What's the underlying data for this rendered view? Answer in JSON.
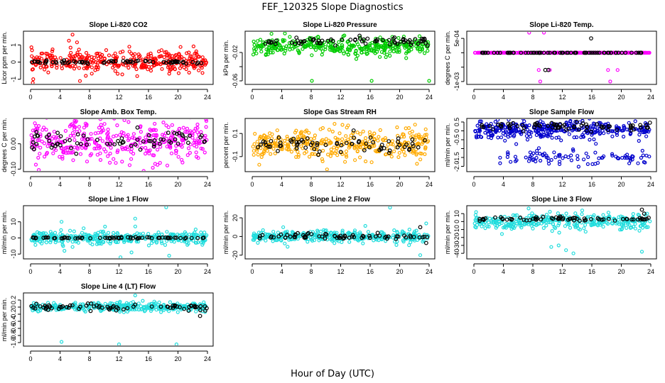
{
  "figure": {
    "title": "FEF_120325  Slope Diagnostics",
    "xlabel": "Hour of Day (UTC)"
  },
  "chart_data": [
    {
      "type": "scatter",
      "title": "Slope Li-820 CO2",
      "ylabel": "Licor ppm per min.",
      "xlim": [
        0,
        24
      ],
      "ylim": [
        -1.3,
        1.8
      ],
      "xticks": [
        "0",
        "4",
        "8",
        "12",
        "16",
        "20",
        "24"
      ],
      "yticks": [
        -1,
        0,
        1
      ],
      "ytick_labels": [
        "-1",
        "0",
        "1"
      ],
      "colors": {
        "primary": "#ff0000",
        "secondary": "#000000"
      },
      "series": [
        {
          "color": "#ff0000",
          "trend": {
            "center": 0.05,
            "spread": 0.3
          },
          "outliers": [
            [
              5.7,
              1.6
            ],
            [
              5.2,
              1.25
            ],
            [
              6.3,
              1.15
            ],
            [
              0.3,
              -1.2
            ],
            [
              6.7,
              -1.1
            ],
            [
              13.4,
              0.9
            ],
            [
              2.4,
              -0.6
            ],
            [
              7.5,
              -0.8
            ]
          ]
        },
        {
          "color": "#000000",
          "trend": {
            "center": 0.0,
            "spread": 0.04
          }
        }
      ]
    },
    {
      "type": "scatter",
      "title": "Slope Li-820 Pressure",
      "ylabel": "kPa per min.",
      "xlim": [
        0,
        24
      ],
      "ylim": [
        -0.065,
        0.01
      ],
      "xticks": [
        "0",
        "4",
        "8",
        "12",
        "16",
        "20",
        "24"
      ],
      "yticks": [
        -0.06,
        -0.04,
        -0.02
      ],
      "ytick_labels": [
        "-0.06",
        "",
        "-0.02"
      ],
      "colors": {
        "primary": "#00cc00",
        "secondary": "#000000"
      },
      "series": [
        {
          "color": "#00cc00",
          "trend": {
            "center": -0.012,
            "spread": 0.006
          },
          "outliers": [
            [
              8.1,
              -0.06
            ],
            [
              16.2,
              -0.06
            ],
            [
              24.0,
              -0.06
            ],
            [
              5.1,
              0.002
            ],
            [
              12.5,
              0.004
            ],
            [
              22.7,
              0.003
            ]
          ]
        },
        {
          "color": "#000000",
          "trend": {
            "center": -0.004,
            "spread": 0.003
          }
        }
      ]
    },
    {
      "type": "scatter",
      "title": "Slope Li-820 Temp.",
      "ylabel": "degrees C per min.",
      "xlim": [
        0,
        24
      ],
      "ylim": [
        -0.0011,
        0.00075
      ],
      "xticks": [
        "0",
        "4",
        "8",
        "12",
        "16",
        "20",
        "24"
      ],
      "yticks": [
        -0.001,
        -0.0005,
        0,
        0.0005
      ],
      "ytick_labels": [
        "-1e-03",
        "",
        "",
        "5e-04"
      ],
      "colors": {
        "primary": "#ff00ff",
        "secondary": "#000000"
      },
      "series": [
        {
          "color": "#ff00ff",
          "trend": {
            "center": 0.0,
            "spread": 0.0
          },
          "outliers": [
            [
              7.5,
              0.0007
            ],
            [
              9.5,
              0.0007
            ],
            [
              8.8,
              -0.0006
            ],
            [
              10.3,
              -0.0006
            ],
            [
              18.2,
              -0.0006
            ],
            [
              19.5,
              -0.0006
            ],
            [
              9.0,
              -0.001
            ],
            [
              18.5,
              -0.001
            ]
          ]
        },
        {
          "color": "#000000",
          "trend": {
            "center": 0.0,
            "spread": 0.0
          },
          "outliers": [
            [
              9.7,
              -0.0006
            ],
            [
              10.1,
              -0.0006
            ],
            [
              15.9,
              0.0005
            ]
          ]
        }
      ]
    },
    {
      "type": "scatter",
      "title": "Slope Amb. Box Temp.",
      "ylabel": "degrees C per min.",
      "xlim": [
        0,
        24
      ],
      "ylim": [
        -0.11,
        0.1
      ],
      "xticks": [
        "0",
        "4",
        "8",
        "12",
        "16",
        "20",
        "24"
      ],
      "yticks": [
        -0.1,
        0.0
      ],
      "ytick_labels": [
        "-0.10",
        "0.00"
      ],
      "colors": {
        "primary": "#ff00ff",
        "secondary": "#000000"
      },
      "series": [
        {
          "color": "#ff00ff",
          "trend": {
            "center": 0.01,
            "spread": 0.04
          }
        },
        {
          "color": "#000000",
          "trend": {
            "center": 0.01,
            "spread": 0.02
          }
        }
      ]
    },
    {
      "type": "scatter",
      "title": "Slope Gas Stream RH",
      "ylabel": "percent per min.",
      "xlim": [
        0,
        24
      ],
      "ylim": [
        -0.23,
        0.23
      ],
      "xticks": [
        "0",
        "4",
        "8",
        "12",
        "16",
        "20",
        "24"
      ],
      "yticks": [
        -0.1,
        0.1
      ],
      "ytick_labels": [
        "-0.1",
        "0.1"
      ],
      "colors": {
        "primary": "#ffaa00",
        "secondary": "#000000"
      },
      "series": [
        {
          "color": "#ffaa00",
          "trend": {
            "center": 0.0,
            "spread": 0.07
          }
        },
        {
          "color": "#000000",
          "trend": {
            "center": 0.0,
            "spread": 0.04
          }
        }
      ]
    },
    {
      "type": "scatter",
      "title": "Slope Sample Flow",
      "ylabel": "ml/min per min.",
      "xlim": [
        0,
        24
      ],
      "ylim": [
        -2.3,
        0.7
      ],
      "xticks": [
        "0",
        "4",
        "8",
        "12",
        "16",
        "20",
        "24"
      ],
      "yticks": [
        0.5,
        0,
        -0.5,
        -1.0,
        -1.5,
        -2.0
      ],
      "ytick_labels": [
        "0.5",
        "0",
        "-0.5",
        "",
        "-1.5",
        "-2.0"
      ],
      "colors": {
        "primary": "#0000cc",
        "secondary": "#000000"
      },
      "series": [
        {
          "color": "#0000cc",
          "trend": {
            "center": 0.1,
            "spread": 0.25
          },
          "band": {
            "center": -1.5,
            "spread": 0.25,
            "count": 90
          }
        },
        {
          "color": "#000000",
          "trend": {
            "center": 0.25,
            "spread": 0.1
          }
        }
      ]
    },
    {
      "type": "scatter",
      "title": "Slope Line 1 Flow",
      "ylabel": "ml/min per min.",
      "xlim": [
        0,
        24
      ],
      "ylim": [
        -13,
        20
      ],
      "xticks": [
        "0",
        "4",
        "8",
        "12",
        "16",
        "20",
        "24"
      ],
      "yticks": [
        -10,
        0,
        10
      ],
      "ytick_labels": [
        "-10",
        "0",
        "10"
      ],
      "colors": {
        "primary": "#22dddd",
        "secondary": "#000000"
      },
      "series": [
        {
          "color": "#22dddd",
          "trend": {
            "center": 0.0,
            "spread": 2.0
          },
          "outliers": [
            [
              4.2,
              10
            ],
            [
              4.6,
              -8
            ],
            [
              12.2,
              -12
            ],
            [
              14.2,
              12
            ],
            [
              13.7,
              -9
            ],
            [
              18.4,
              19
            ],
            [
              18.8,
              -11
            ],
            [
              10.1,
              7
            ],
            [
              7.2,
              6
            ]
          ]
        },
        {
          "color": "#000000",
          "trend": {
            "center": 0.0,
            "spread": 0.2
          }
        }
      ]
    },
    {
      "type": "scatter",
      "title": "Slope Line 2 Flow",
      "ylabel": "ml/min per min.",
      "xlim": [
        0,
        24
      ],
      "ylim": [
        -24,
        33
      ],
      "xticks": [
        "0",
        "4",
        "8",
        "12",
        "16",
        "20",
        "24"
      ],
      "yticks": [
        -20,
        0,
        20
      ],
      "ytick_labels": [
        "-20",
        "0",
        "20"
      ],
      "colors": {
        "primary": "#22dddd",
        "secondary": "#000000"
      },
      "series": [
        {
          "color": "#22dddd",
          "trend": {
            "center": 0.0,
            "spread": 3.0
          },
          "outliers": [
            [
              18.7,
              31
            ],
            [
              22.8,
              -20
            ],
            [
              4.2,
              10
            ],
            [
              4.8,
              -11
            ],
            [
              23.6,
              14
            ],
            [
              2.8,
              -5
            ]
          ]
        },
        {
          "color": "#000000",
          "trend": {
            "center": 0.0,
            "spread": 1.5
          },
          "outliers": [
            [
              22.8,
              10
            ],
            [
              23.6,
              -7
            ]
          ]
        }
      ]
    },
    {
      "type": "scatter",
      "title": "Slope Line 3 Flow",
      "ylabel": "ml/min per min.",
      "xlim": [
        0,
        24
      ],
      "ylim": [
        -47,
        20
      ],
      "xticks": [
        "0",
        "4",
        "8",
        "12",
        "16",
        "20",
        "24"
      ],
      "yticks": [
        -40,
        -30,
        -20,
        -10,
        0,
        10
      ],
      "ytick_labels": [
        "-40",
        "-30",
        "-20",
        "-10",
        "0",
        "10"
      ],
      "colors": {
        "primary": "#22dddd",
        "secondary": "#000000"
      },
      "series": [
        {
          "color": "#22dddd",
          "trend": {
            "center": 0.0,
            "spread": 5.0
          },
          "outliers": [
            [
              11.5,
              -30
            ],
            [
              13.5,
              -40
            ],
            [
              12.5,
              -36
            ],
            [
              22.8,
              -38
            ],
            [
              14.7,
              14
            ],
            [
              0.3,
              12
            ],
            [
              10.5,
              -32
            ]
          ]
        },
        {
          "color": "#000000",
          "trend": {
            "center": 3.0,
            "spread": 1.5
          },
          "outliers": [
            [
              22.8,
              15
            ],
            [
              23.1,
              10
            ]
          ]
        }
      ]
    },
    {
      "type": "scatter",
      "title": "Slope Line 4 (LT) Flow",
      "ylabel": "ml/min per min.",
      "xlim": [
        0,
        24
      ],
      "ylim": [
        -1.1,
        0.4
      ],
      "xticks": [
        "0",
        "4",
        "8",
        "12",
        "16",
        "20",
        "24"
      ],
      "yticks": [
        0.2,
        0,
        -0.2,
        -0.4,
        -0.6,
        -0.8,
        -1.0
      ],
      "ytick_labels": [
        "0.2",
        "0",
        "-0.2",
        "-0.4",
        "-0.6",
        "-0.8",
        "-1.0"
      ],
      "colors": {
        "primary": "#22dddd",
        "secondary": "#000000"
      },
      "series": [
        {
          "color": "#22dddd",
          "trend": {
            "center": 0.0,
            "spread": 0.06
          },
          "outliers": [
            [
              4.2,
              -0.98
            ],
            [
              12.0,
              -1.05
            ],
            [
              19.8,
              -1.05
            ],
            [
              14.2,
              0.33
            ]
          ]
        },
        {
          "color": "#000000",
          "trend": {
            "center": 0.0,
            "spread": 0.04
          },
          "outliers": [
            [
              23.0,
              -0.25
            ],
            [
              23.7,
              -0.1
            ]
          ]
        }
      ]
    }
  ]
}
